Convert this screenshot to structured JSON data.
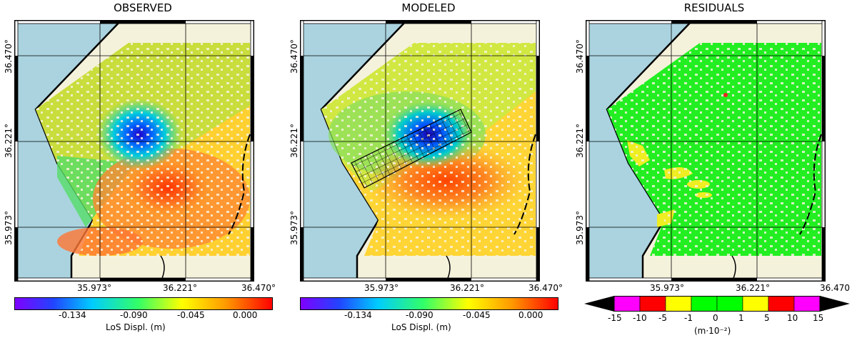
{
  "panels": [
    {
      "title": "OBSERVED"
    },
    {
      "title": "MODELED"
    },
    {
      "title": "RESIDUALS"
    }
  ],
  "axes": {
    "x_ticks": [
      "35.973°",
      "36.221°",
      "36.470°"
    ],
    "x_ticks_residual": [
      "35.973°",
      "36.221°",
      "36.470"
    ],
    "y_ticks": [
      "36.470°",
      "36.221°",
      "35.973°"
    ]
  },
  "colorbar_displacement": {
    "ticks": [
      "-0.134",
      "-0.090",
      "-0.045",
      "0.000"
    ],
    "label": "LoS Displ. (m)"
  },
  "colorbar_residual": {
    "ticks": [
      "-15",
      "-10",
      "-5",
      "-1",
      "0",
      "1",
      "5",
      "10",
      "15"
    ],
    "label": "(m·10⁻²)",
    "colors": [
      "#ff00ff",
      "#ff0000",
      "#ffff00",
      "#00ff00",
      "#00ff00",
      "#ffff00",
      "#ff0000",
      "#ff00ff"
    ]
  },
  "colors": {
    "sea": "#aad3df",
    "land": "#f5f2dc"
  }
}
